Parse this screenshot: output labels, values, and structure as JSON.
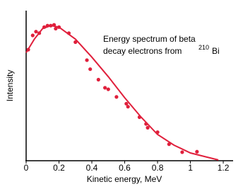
{
  "chart_data": {
    "type": "scatter",
    "annotation": {
      "lines": [
        "Energy spectrum of beta",
        "decay electrons from"
      ],
      "superscript": "210",
      "element": "Bi"
    },
    "xlabel": "Kinetic energy, MeV",
    "ylabel": "Intensity",
    "xlim": [
      0,
      1.26
    ],
    "ylim": [
      0,
      100
    ],
    "xticks": [
      0,
      0.2,
      0.4,
      0.6,
      0.8,
      1.0,
      1.2
    ],
    "color": "#e0203c",
    "x": [
      0.013,
      0.04,
      0.06,
      0.08,
      0.11,
      0.13,
      0.15,
      0.17,
      0.18,
      0.2,
      0.26,
      0.3,
      0.37,
      0.39,
      0.44,
      0.48,
      0.5,
      0.55,
      0.61,
      0.62,
      0.69,
      0.73,
      0.74,
      0.8,
      0.87,
      0.95,
      1.04
    ],
    "values": [
      74,
      83.5,
      86,
      85,
      89,
      90,
      90,
      90.5,
      88,
      89,
      85,
      79,
      67,
      61,
      54,
      48.6,
      47.6,
      42.5,
      38,
      36,
      29,
      24.5,
      22,
      19,
      11,
      5.7,
      6
    ],
    "fit": {
      "x": [
        0,
        0.05,
        0.1,
        0.15,
        0.2,
        0.3,
        0.4,
        0.5,
        0.6,
        0.7,
        0.8,
        0.9,
        1.0,
        1.1,
        1.17
      ],
      "values": [
        72,
        81,
        88,
        90,
        89,
        81,
        69,
        56,
        42,
        29,
        17.5,
        10.4,
        5.2,
        2.4,
        0.5
      ]
    }
  }
}
